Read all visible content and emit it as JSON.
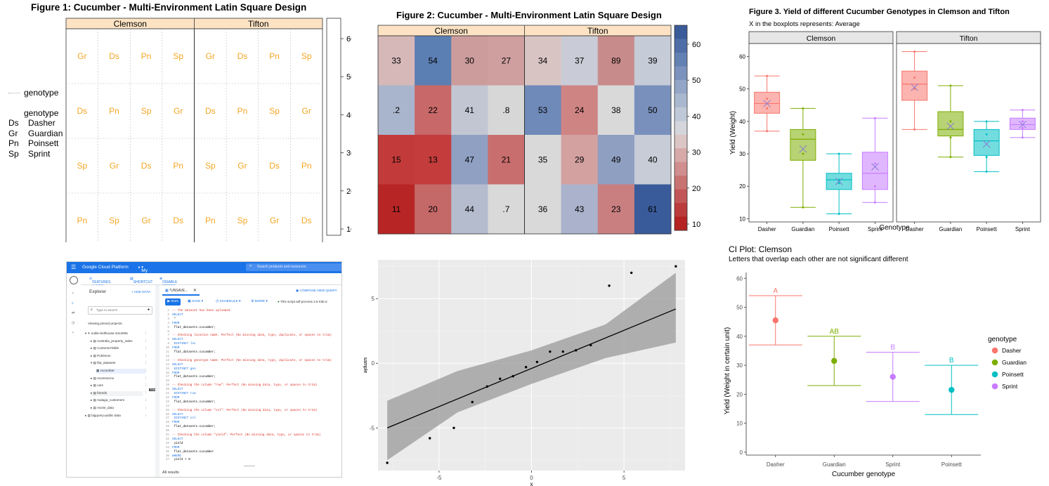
{
  "fig1": {
    "title": "Figure 1: Cucumber - Multi-Environment Latin Square Design",
    "envs": [
      "Clemson",
      "Tifton"
    ],
    "grid": [
      [
        "Gr",
        "Ds",
        "Pn",
        "Sp",
        "Gr",
        "Ds",
        "Pn",
        "Sp"
      ],
      [
        "Ds",
        "Pn",
        "Sp",
        "Gr",
        "Ds",
        "Pn",
        "Sp",
        "Gr"
      ],
      [
        "Sp",
        "Gr",
        "Ds",
        "Pn",
        "Sp",
        "Gr",
        "Ds",
        "Pn"
      ],
      [
        "Pn",
        "Sp",
        "Gr",
        "Ds",
        "Pn",
        "Sp",
        "Gr",
        "Ds"
      ]
    ],
    "legend_top": "genotype",
    "legend_title": "genotype",
    "legend_items": [
      {
        "code": "Ds",
        "name": "Dasher"
      },
      {
        "code": "Gr",
        "name": "Guardian"
      },
      {
        "code": "Pn",
        "name": "Poinsett"
      },
      {
        "code": "Sp",
        "name": "Sprint"
      }
    ],
    "scale_ticks": [
      "60",
      "50",
      "40",
      "30",
      "20",
      "10"
    ],
    "text_color": "#f5a623",
    "header_color": "#fde3c4"
  },
  "fig2": {
    "title": "Figure 2: Cucumber - Multi-Environment Latin Square Design",
    "envs": [
      "Clemson",
      "Tifton"
    ],
    "values": [
      [
        "33",
        "54",
        "30",
        "27",
        "34",
        "37",
        "89",
        "39"
      ],
      [
        ".2",
        "22",
        "41",
        ".8",
        "53",
        "24",
        "38",
        "50"
      ],
      [
        "15",
        "13",
        "47",
        "21",
        "35",
        "29",
        "49",
        "40"
      ],
      [
        "11",
        "20",
        "44",
        ".7",
        "36",
        "43",
        "23",
        "61"
      ]
    ],
    "fills": [
      [
        "#d6b8b8",
        "#5c7fb3",
        "#cc9c9c",
        "#cf9fa0",
        "#d9c4c4",
        "#c9cbd6",
        "#c88b8b",
        "#c6cbd8"
      ],
      [
        "#a9b5cc",
        "#c86868",
        "#c2c6d2",
        "#d7d7d7",
        "#6f89b8",
        "#cf8484",
        "#d9d9d9",
        "#7990bd"
      ],
      [
        "#c23a3a",
        "#c43c3c",
        "#8fa0c2",
        "#c96e6e",
        "#d9d9d9",
        "#d4a1a1",
        "#8e9fc1",
        "#c7ccd7"
      ],
      [
        "#b82525",
        "#c56868",
        "#b5bcce",
        "#d9d9d9",
        "#d9d9d9",
        "#aab3cb",
        "#c97f80",
        "#3a5b9a"
      ]
    ],
    "scale_ticks": [
      "60",
      "50",
      "40",
      "30",
      "20",
      "10"
    ]
  },
  "chart_data": [
    {
      "type": "heatmap",
      "title": "Figure 1: Cucumber - Multi-Environment Latin Square Design",
      "facets": [
        "Clemson",
        "Tifton"
      ],
      "cells": [
        [
          "Gr",
          "Ds",
          "Pn",
          "Sp",
          "Gr",
          "Ds",
          "Pn",
          "Sp"
        ],
        [
          "Ds",
          "Pn",
          "Sp",
          "Gr",
          "Ds",
          "Pn",
          "Sp",
          "Gr"
        ],
        [
          "Sp",
          "Gr",
          "Ds",
          "Pn",
          "Sp",
          "Gr",
          "Ds",
          "Pn"
        ],
        [
          "Pn",
          "Sp",
          "Gr",
          "Ds",
          "Pn",
          "Sp",
          "Gr",
          "Ds"
        ]
      ],
      "colorbar_range": [
        10,
        60
      ]
    },
    {
      "type": "heatmap",
      "title": "Figure 2: Cucumber - Multi-Environment Latin Square Design",
      "facets": [
        "Clemson",
        "Tifton"
      ],
      "values": [
        [
          33,
          54,
          30,
          27,
          34,
          37,
          89,
          39
        ],
        [
          0.2,
          22,
          41,
          0.8,
          53,
          24,
          38,
          50
        ],
        [
          15,
          13,
          47,
          21,
          35,
          29,
          49,
          40
        ],
        [
          11,
          20,
          44,
          0.7,
          36,
          43,
          23,
          61
        ]
      ],
      "colorbar_range": [
        10,
        60
      ]
    },
    {
      "type": "box",
      "title": "Figure 3. Yield of different Cucumber Genotypes in Clemson and Tifton",
      "subtitle": "X in the boxplots represents: Average",
      "facets": [
        "Clemson",
        "Tifton"
      ],
      "categories": [
        "Dasher",
        "Guardian",
        "Poinsett",
        "Sprint"
      ],
      "colors": [
        "#f8766d",
        "#7cae00",
        "#00bfc4",
        "#c77cff"
      ],
      "xlabel": "Genotype",
      "ylabel": "Yield (Weight)",
      "ylim": [
        9,
        64
      ],
      "yticks": [
        10,
        20,
        30,
        40,
        50,
        60
      ],
      "boxes": {
        "Clemson": [
          {
            "min": 37,
            "q1": 42.5,
            "median": 45.5,
            "q3": 49,
            "max": 54,
            "mean": 45.5,
            "points": [
              37,
              44,
              47,
              54
            ]
          },
          {
            "min": 13.5,
            "q1": 28,
            "median": 34.5,
            "q3": 37.5,
            "max": 44,
            "mean": 31.5,
            "points": [
              13.5,
              30,
              36,
              44
            ]
          },
          {
            "min": 11.5,
            "q1": 19,
            "median": 22,
            "q3": 24,
            "max": 30,
            "mean": 21.5,
            "points": [
              11.5,
              21,
              22,
              30
            ]
          },
          {
            "min": 15,
            "q1": 19,
            "median": 24,
            "q3": 30.5,
            "max": 41,
            "mean": 26,
            "points": [
              15,
              20,
              27,
              41
            ]
          }
        ],
        "Tifton": [
          {
            "min": 37.5,
            "q1": 46.5,
            "median": 51.5,
            "q3": 55.5,
            "max": 61.5,
            "mean": 50.5,
            "points": [
              37.5,
              50,
              53.5,
              61.5
            ]
          },
          {
            "min": 29,
            "q1": 35.5,
            "median": 37.5,
            "q3": 43,
            "max": 51,
            "mean": 38.5,
            "points": [
              29,
              35,
              40,
              51
            ]
          },
          {
            "min": 24.5,
            "q1": 29.5,
            "median": 34,
            "q3": 37.5,
            "max": 40,
            "mean": 33,
            "points": [
              24.5,
              29,
              36,
              40
            ]
          },
          {
            "min": 35,
            "q1": 37.5,
            "median": 39,
            "q3": 41,
            "max": 43.5,
            "mean": 39,
            "points": [
              35,
              38,
              40,
              43.5
            ]
          }
        ]
      }
    },
    {
      "type": "scatter",
      "xlabel": "x",
      "ylabel": "sample",
      "xlim": [
        -8.3,
        8.3
      ],
      "ylim": [
        -8.3,
        8.0
      ],
      "xticks": [
        -5,
        0,
        5
      ],
      "yticks": [
        -5,
        0,
        5
      ],
      "points": [
        [
          -7.8,
          -7.7
        ],
        [
          -5.5,
          -5.8
        ],
        [
          -4.2,
          -5.0
        ],
        [
          -3.2,
          -3.0
        ],
        [
          -2.4,
          -1.8
        ],
        [
          -1.7,
          -1.2
        ],
        [
          -1.0,
          -1.0
        ],
        [
          -0.3,
          -0.3
        ],
        [
          0.3,
          0.1
        ],
        [
          1.0,
          0.9
        ],
        [
          1.7,
          0.9
        ],
        [
          2.4,
          1.0
        ],
        [
          3.2,
          1.4
        ],
        [
          4.2,
          6.0
        ],
        [
          5.4,
          7.0
        ],
        [
          7.8,
          7.5
        ]
      ],
      "fit": {
        "x": [
          -7.8,
          7.8
        ],
        "y": [
          -5.0,
          4.2
        ]
      },
      "band_upper": [
        [
          -7.8,
          -2.9
        ],
        [
          -4,
          -0.6
        ],
        [
          0,
          1.0
        ],
        [
          4,
          3.0
        ],
        [
          7.8,
          7.0
        ]
      ],
      "band_lower": [
        [
          -7.8,
          -7.5
        ],
        [
          -4,
          -3.8
        ],
        [
          0,
          -1.6
        ],
        [
          4,
          0.4
        ],
        [
          7.8,
          1.6
        ]
      ]
    },
    {
      "type": "errorbar",
      "title": "CI Plot: Clemson",
      "subtitle": "Letters that overlap each other are not significant different",
      "categories": [
        "Dasher",
        "Guardian",
        "Sprint",
        "Poinsett"
      ],
      "xlabel": "Cucumber genotype",
      "ylabel": "Yield (Weight in certain unit)",
      "ylim": [
        -1,
        62
      ],
      "yticks": [
        0,
        10,
        20,
        30,
        40,
        50,
        60
      ],
      "series": [
        {
          "name": "Dasher",
          "mean": 45.5,
          "lower": 37,
          "upper": 54,
          "letter": "A",
          "color": "#f8766d"
        },
        {
          "name": "Guardian",
          "mean": 31.5,
          "lower": 23,
          "upper": 40,
          "letter": "AB",
          "color": "#7cae00"
        },
        {
          "name": "Sprint",
          "mean": 26,
          "lower": 17.5,
          "upper": 34.5,
          "letter": "B",
          "color": "#c77cff"
        },
        {
          "name": "Poinsett",
          "mean": 21.5,
          "lower": 13,
          "upper": 30,
          "letter": "B",
          "color": "#00bfc4"
        }
      ],
      "legend_title": "genotype",
      "legend_items": [
        "Dasher",
        "Guardian",
        "Poinsett",
        "Sprint"
      ],
      "legend_colors": [
        "#f8766d",
        "#7cae00",
        "#00bfc4",
        "#c77cff"
      ]
    }
  ],
  "gcp": {
    "brand": "Google Cloud Platform",
    "project": "My second sandbox project",
    "search_placeholder": "Search products and resources",
    "features": "FEATURES & INFO",
    "shortcut": "SHORTCUT",
    "disable_tabs": "DISABLE EDITOR TABS",
    "explorer": "Explorer",
    "add_data": "+ ADD DATA",
    "search_tables": "Type to search",
    "viewing_pinned": "Viewing pinned projects.",
    "tree": [
      "noble-bolthouse-3412905",
      "Australia_property_sales",
      "CustomerTable",
      "Pokémon",
      "flat_datasets",
      "cucumber",
      "ecommerce",
      "cars",
      "friends",
      "malaga_customers",
      "movie_data",
      "bigquery-public-data"
    ],
    "tab": "*UNSAVE...",
    "compose": "COMPOSE NEW QUERY",
    "run": "RUN",
    "save": "SAVE",
    "schedule": "SCHEDULE",
    "more": "MORE",
    "process_msg": "This script will process 2.6 KiB w",
    "code": [
      {
        "t": "-- The dataset has been uploaded",
        "c": "cmt"
      },
      {
        "t": "SELECT",
        "c": "kw"
      },
      {
        "t": "  *",
        "c": ""
      },
      {
        "t": "FROM",
        "c": "kw"
      },
      {
        "t": "  flat_datasets.cucumber;",
        "c": ""
      },
      {
        "t": "",
        "c": ""
      },
      {
        "t": "-- Checking location name: Perfect (No missing data, typo, duplicate, or spaces to trim)",
        "c": "cmt"
      },
      {
        "t": "SELECT",
        "c": "kw"
      },
      {
        "t": "  DISTINCT loc",
        "c": "kw"
      },
      {
        "t": "FROM",
        "c": "kw"
      },
      {
        "t": "  flat_datasets.cucumber;",
        "c": ""
      },
      {
        "t": "",
        "c": ""
      },
      {
        "t": "-- Checking genotype name: Perfect (No missing data, typo, duplicate, or spaces to trim)",
        "c": "cmt"
      },
      {
        "t": "SELECT",
        "c": "kw"
      },
      {
        "t": "  DISTINCT gen",
        "c": "kw"
      },
      {
        "t": "FROM",
        "c": "kw"
      },
      {
        "t": "  flat_datasets.cucumber;",
        "c": ""
      },
      {
        "t": "",
        "c": ""
      },
      {
        "t": "-- Checking the column \"row\": Perfect (No missing data, typo, or spaces to trim)",
        "c": "cmt"
      },
      {
        "t": "SELECT",
        "c": "kw"
      },
      {
        "t": "  DISTINCT row",
        "c": "kw"
      },
      {
        "t": "FROM",
        "c": "kw"
      },
      {
        "t": "  flat_datasets.cucumber;",
        "c": ""
      },
      {
        "t": "",
        "c": ""
      },
      {
        "t": "-- Checking the column \"col\": Perfect (No missing data, typo, or spaces to trim)",
        "c": "cmt"
      },
      {
        "t": "SELECT",
        "c": "kw"
      },
      {
        "t": "  DISTINCT col",
        "c": "kw"
      },
      {
        "t": "FROM",
        "c": "kw"
      },
      {
        "t": "  flat_datasets.cucumber;",
        "c": ""
      },
      {
        "t": "",
        "c": ""
      },
      {
        "t": "-- Checking the column \"yield\": Perfect (No missing data, typo, or spaces to trim)",
        "c": "cmt"
      },
      {
        "t": "SELECT",
        "c": "kw"
      },
      {
        "t": "  yield",
        "c": ""
      },
      {
        "t": "FROM",
        "c": "kw"
      },
      {
        "t": "  flat_datasets.cucumber",
        "c": ""
      },
      {
        "t": "WHERE",
        "c": "kw"
      },
      {
        "t": "  yield > 0",
        "c": ""
      }
    ],
    "all_results": "All results",
    "tooltip": "Friends"
  }
}
